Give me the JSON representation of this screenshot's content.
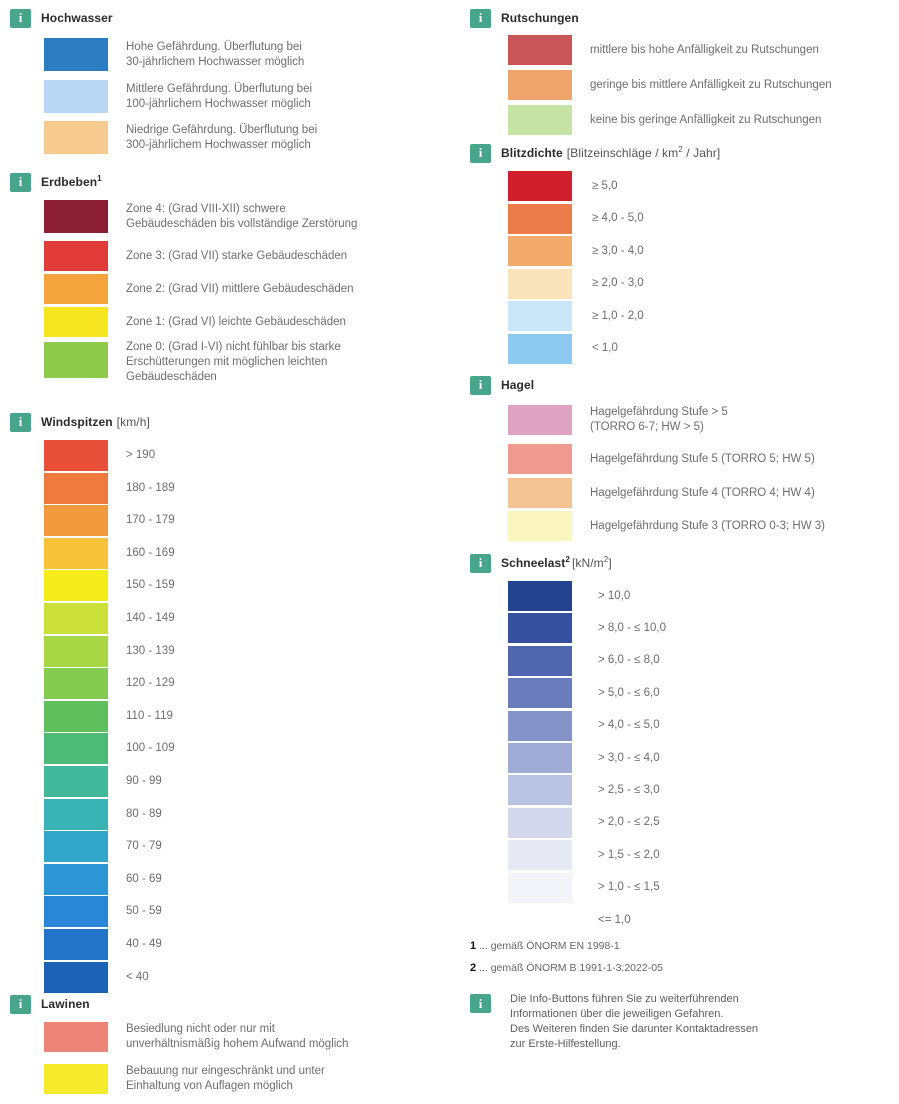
{
  "left": {
    "hochwasser": {
      "title": "Hochwasser",
      "items": [
        {
          "color": "#2c7dc2",
          "text": "Hohe Gefährdung. Überflutung bei\n30-jährlichem Hochwasser möglich"
        },
        {
          "color": "#b8d5f4",
          "text": "Mittlere Gefährdung. Überflutung bei\n100-jährlichem Hochwasser möglich"
        },
        {
          "color": "#f6c98f",
          "text": "Niedrige Gefährdung. Überflutung bei\n300-jährlichem Hochwasser möglich"
        }
      ]
    },
    "erdbeben": {
      "title": "Erdbeben",
      "sup": "1",
      "items": [
        {
          "color": "#8b1f33",
          "text": "Zone 4: (Grad VIII-XII) schwere\nGebäudeschäden bis vollständige Zerstörung"
        },
        {
          "color": "#e23c3a",
          "text": "Zone 3: (Grad VII) starke Gebäudeschäden"
        },
        {
          "color": "#f3a43c",
          "text": "Zone 2: (Grad VII) mittlere Gebäudeschäden"
        },
        {
          "color": "#f5e621",
          "text": "Zone 1: (Grad VI) leichte Gebäudeschäden"
        },
        {
          "color": "#8fca4c",
          "text": "Zone 0: (Grad I-VI) nicht fühlbar bis starke\nErschütterungen mit möglichen leichten\nGebäudeschäden"
        }
      ]
    },
    "windspitzen": {
      "title": "Windspitzen",
      "unit": "[km/h]",
      "items": [
        {
          "color": "#e8503a",
          "text": "> 190"
        },
        {
          "color": "#ee7a3e",
          "text": "180 - 189"
        },
        {
          "color": "#f29a3e",
          "text": "170 - 179"
        },
        {
          "color": "#f6c23a",
          "text": "160 - 169"
        },
        {
          "color": "#f5ec1c",
          "text": "150 - 159"
        },
        {
          "color": "#cce03a",
          "text": "140 - 149"
        },
        {
          "color": "#a8d645",
          "text": "130 - 139"
        },
        {
          "color": "#84cb52",
          "text": "120 - 129"
        },
        {
          "color": "#5fbf5d",
          "text": "110 - 119"
        },
        {
          "color": "#4cbb78",
          "text": "100 - 109"
        },
        {
          "color": "#41b89a",
          "text": "90 - 99"
        },
        {
          "color": "#39b3b5",
          "text": "80 - 89"
        },
        {
          "color": "#32a6c8",
          "text": "70 - 79"
        },
        {
          "color": "#2d96d4",
          "text": "60 - 69"
        },
        {
          "color": "#2a86d6",
          "text": "50 - 59"
        },
        {
          "color": "#2274c8",
          "text": "40 - 49"
        },
        {
          "color": "#1c62b4",
          "text": "< 40"
        }
      ]
    },
    "lawinen": {
      "title": "Lawinen",
      "items": [
        {
          "color": "#ec8577",
          "text": "Besiedlung nicht oder nur mit\nunverhältnismäßig hohem Aufwand möglich"
        },
        {
          "color": "#f6ea2c",
          "text": "Bebauung nur eingeschränkt und unter\nEinhaltung von Auflagen möglich"
        }
      ]
    }
  },
  "right": {
    "rutschungen": {
      "title": "Rutschungen",
      "items": [
        {
          "color": "#c85558",
          "text": "mittlere bis hohe Anfälligkeit zu Rutschungen"
        },
        {
          "color": "#efa46c",
          "text": "geringe bis mittlere Anfälligkeit zu Rutschungen"
        },
        {
          "color": "#c4e3a5",
          "text": "keine bis geringe Anfälligkeit zu Rutschungen"
        }
      ]
    },
    "blitzdichte": {
      "title": "Blitzdichte",
      "unit_pre": "[Blitzeinschläge / km",
      "unit_sup": "2",
      "unit_post": " / Jahr]",
      "items": [
        {
          "color": "#d01f2c",
          "text": "≥ 5,0"
        },
        {
          "color": "#ec7c4a",
          "text": "≥ 4,0 - 5,0"
        },
        {
          "color": "#f2ab6a",
          "text": "≥ 3,0 - 4,0"
        },
        {
          "color": "#f9e3bb",
          "text": "≥ 2,0 - 3,0"
        },
        {
          "color": "#c8e6f6",
          "text": "≥ 1,0 - 2,0"
        },
        {
          "color": "#8ecaf0",
          "text": "< 1,0"
        }
      ]
    },
    "hagel": {
      "title": "Hagel",
      "items": [
        {
          "color": "#dea2c3",
          "text": "Hagelgefährdung Stufe > 5\n(TORRO 6-7; HW > 5)"
        },
        {
          "color": "#ef9a8e",
          "text": "Hagelgefährdung Stufe 5 (TORRO 5; HW 5)"
        },
        {
          "color": "#f4c393",
          "text": "Hagelgefährdung Stufe 4 (TORRO 4; HW 4)"
        },
        {
          "color": "#fbf6c0",
          "text": "Hagelgefährdung Stufe 3 (TORRO 0-3; HW 3)"
        }
      ]
    },
    "schneelast": {
      "title": "Schneelast",
      "sup": "2",
      "unit_pre": "[kN/m",
      "unit_sup": "2",
      "unit_post": "]",
      "items": [
        {
          "color": "#24438f",
          "text": "> 10,0"
        },
        {
          "color": "#34509f",
          "text": "> 8,0 - ≤ 10,0"
        },
        {
          "color": "#4f65ad",
          "text": "> 6,0 - ≤ 8,0"
        },
        {
          "color": "#6a7cbc",
          "text": "> 5,0 - ≤ 6,0"
        },
        {
          "color": "#8493c8",
          "text": "> 4,0 - ≤ 5,0"
        },
        {
          "color": "#a1acd6",
          "text": "> 3,0 - ≤ 4,0"
        },
        {
          "color": "#bbc3e2",
          "text": "> 2,5 - ≤ 3,0"
        },
        {
          "color": "#d3d8ec",
          "text": "> 2,0 - ≤ 2,5"
        },
        {
          "color": "#e6e9f4",
          "text": "> 1,5 - ≤ 2,0"
        },
        {
          "color": "#f3f4f9",
          "text": "> 1,0 - ≤ 1,5"
        },
        {
          "color": "#ffffff",
          "text": "<= 1,0"
        }
      ]
    },
    "footnotes": [
      {
        "mark": "1",
        "text": "... gemäß ÖNORM EN 1998-1"
      },
      {
        "mark": "2",
        "text": "... gemäß ÖNORM B 1991-1-3:2022-05"
      }
    ],
    "info_note": "Die Info-Buttons führen Sie zu weiterführenden\nInformationen über die jeweiligen Gefahren.\nDes Weiteren finden Sie darunter Kontaktadressen\nzur Erste-Hilfestellung."
  },
  "colors": {
    "info_button": "#46a58a"
  }
}
